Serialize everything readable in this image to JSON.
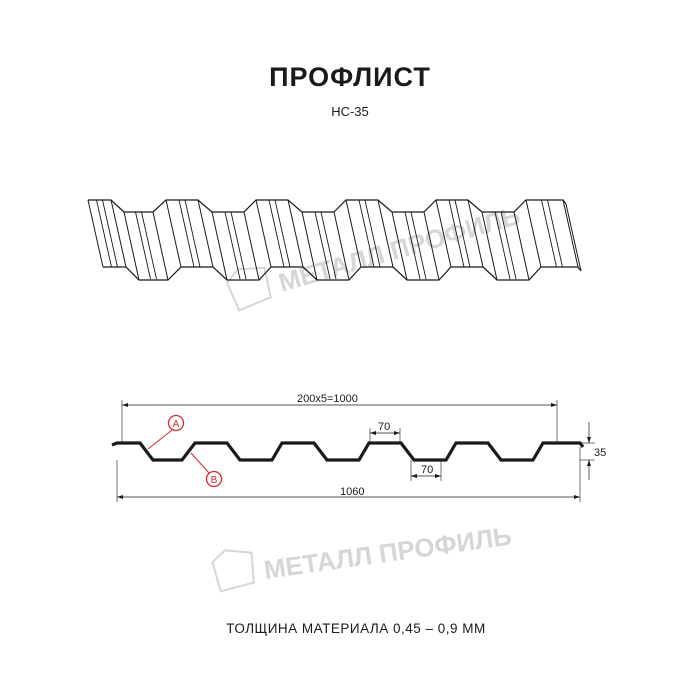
{
  "title": "ПРОФЛИСТ",
  "subtitle": "НС-35",
  "watermark": "МЕТАЛЛ ПРОФИЛЬ",
  "dimensions": {
    "pitch_total": "200x5=1000",
    "overall_width": "1060",
    "top_flat": "70",
    "bottom_flat": "70",
    "height": "35"
  },
  "markers": {
    "a": "A",
    "b": "B"
  },
  "material_thickness": "ТОЛЩИНА МАТЕРИАЛА 0,45 – 0,9 ММ",
  "colors": {
    "line": "#1a1a1a",
    "marker": "#d9262b",
    "watermark": "#d6d6d6"
  }
}
